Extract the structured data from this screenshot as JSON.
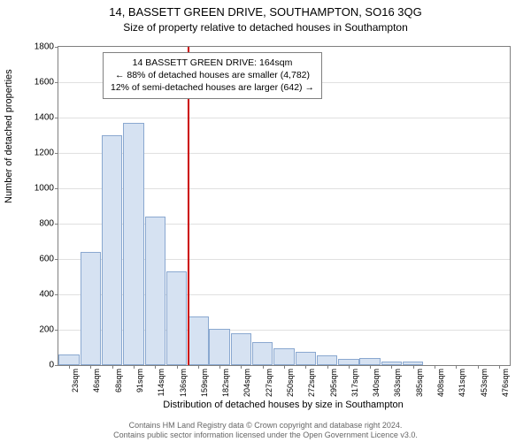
{
  "title": "14, BASSETT GREEN DRIVE, SOUTHAMPTON, SO16 3QG",
  "subtitle": "Size of property relative to detached houses in Southampton",
  "yAxisLabel": "Number of detached properties",
  "xAxisLabel": "Distribution of detached houses by size in Southampton",
  "chart": {
    "type": "histogram",
    "ylim": [
      0,
      1800
    ],
    "ytick_step": 200,
    "bar_fill": "#d6e2f2",
    "bar_stroke": "#8aa8d0",
    "grid_color": "#e0e0e0",
    "border_color": "#808080",
    "background_color": "#ffffff",
    "categories": [
      "23sqm",
      "46sqm",
      "68sqm",
      "91sqm",
      "114sqm",
      "136sqm",
      "159sqm",
      "182sqm",
      "204sqm",
      "227sqm",
      "250sqm",
      "272sqm",
      "295sqm",
      "317sqm",
      "340sqm",
      "363sqm",
      "385sqm",
      "408sqm",
      "431sqm",
      "453sqm",
      "476sqm"
    ],
    "values": [
      58,
      640,
      1300,
      1370,
      840,
      530,
      275,
      205,
      180,
      130,
      95,
      75,
      55,
      35,
      40,
      18,
      20,
      0,
      0,
      0,
      0
    ],
    "marker_after_index": 5,
    "marker_value": "164sqm",
    "marker_color": "#cc0000"
  },
  "infobox": {
    "line1": "14 BASSETT GREEN DRIVE: 164sqm",
    "line2": "← 88% of detached houses are smaller (4,782)",
    "line3": "12% of semi-detached houses are larger (642) →"
  },
  "footer": {
    "line1": "Contains HM Land Registry data © Crown copyright and database right 2024.",
    "line2": "Contains public sector information licensed under the Open Government Licence v3.0."
  }
}
